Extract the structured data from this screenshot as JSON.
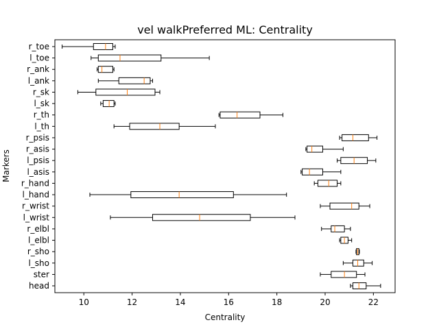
{
  "chart_data": {
    "type": "boxplot",
    "title": "vel walkPreferred ML: Centrality",
    "xlabel": "Centrality",
    "ylabel": "Markers",
    "xlim": [
      8.8,
      22.9
    ],
    "xticks": [
      10,
      12,
      14,
      16,
      18,
      20,
      22
    ],
    "grid": false,
    "orientation": "horizontal",
    "colors": {
      "box": "#000000",
      "median": "#ff7f0e"
    },
    "series": [
      {
        "category": "head",
        "whislo": 21.05,
        "q1": 21.15,
        "med": 21.4,
        "q3": 21.7,
        "whishi": 22.3
      },
      {
        "category": "ster",
        "whislo": 19.8,
        "q1": 20.25,
        "med": 20.8,
        "q3": 21.3,
        "whishi": 21.65
      },
      {
        "category": "l_sho",
        "whislo": 20.75,
        "q1": 21.15,
        "med": 21.35,
        "q3": 21.6,
        "whishi": 21.95
      },
      {
        "category": "r_sho",
        "whislo": 21.28,
        "q1": 21.3,
        "med": 21.35,
        "q3": 21.4,
        "whishi": 21.42
      },
      {
        "category": "l_elbl",
        "whislo": 20.6,
        "q1": 20.65,
        "med": 20.8,
        "q3": 20.95,
        "whishi": 21.1
      },
      {
        "category": "r_elbl",
        "whislo": 19.85,
        "q1": 20.25,
        "med": 20.4,
        "q3": 20.8,
        "whishi": 21.05
      },
      {
        "category": "l_wrist",
        "whislo": 11.1,
        "q1": 12.85,
        "med": 14.8,
        "q3": 16.9,
        "whishi": 18.75
      },
      {
        "category": "r_wrist",
        "whislo": 19.8,
        "q1": 20.2,
        "med": 21.1,
        "q3": 21.4,
        "whishi": 21.85
      },
      {
        "category": "l_hand",
        "whislo": 10.25,
        "q1": 11.95,
        "med": 13.95,
        "q3": 16.2,
        "whishi": 18.4
      },
      {
        "category": "r_hand",
        "whislo": 19.55,
        "q1": 19.7,
        "med": 20.15,
        "q3": 20.5,
        "whishi": 20.65
      },
      {
        "category": "l_asis",
        "whislo": 19.0,
        "q1": 19.05,
        "med": 19.35,
        "q3": 19.9,
        "whishi": 20.65
      },
      {
        "category": "l_psis",
        "whislo": 20.5,
        "q1": 20.65,
        "med": 21.2,
        "q3": 21.75,
        "whishi": 22.1
      },
      {
        "category": "r_asis",
        "whislo": 19.2,
        "q1": 19.25,
        "med": 19.45,
        "q3": 19.9,
        "whishi": 20.75
      },
      {
        "category": "r_psis",
        "whislo": 20.6,
        "q1": 20.7,
        "med": 21.15,
        "q3": 21.8,
        "whishi": 22.15
      },
      {
        "category": "l_th",
        "whislo": 11.25,
        "q1": 11.9,
        "med": 13.15,
        "q3": 13.95,
        "whishi": 15.45
      },
      {
        "category": "r_th",
        "whislo": 15.6,
        "q1": 15.65,
        "med": 16.35,
        "q3": 17.3,
        "whishi": 18.25
      },
      {
        "category": "l_sk",
        "whislo": 10.7,
        "q1": 10.8,
        "med": 11.05,
        "q3": 11.25,
        "whishi": 11.3
      },
      {
        "category": "r_sk",
        "whislo": 9.75,
        "q1": 10.5,
        "med": 11.8,
        "q3": 12.95,
        "whishi": 13.15
      },
      {
        "category": "l_ank",
        "whislo": 10.6,
        "q1": 11.45,
        "med": 12.5,
        "q3": 12.75,
        "whishi": 12.85
      },
      {
        "category": "r_ank",
        "whislo": 10.55,
        "q1": 10.6,
        "med": 10.75,
        "q3": 11.2,
        "whishi": 11.25
      },
      {
        "category": "l_toe",
        "whislo": 10.3,
        "q1": 10.6,
        "med": 11.5,
        "q3": 13.2,
        "whishi": 15.2
      },
      {
        "category": "r_toe",
        "whislo": 9.1,
        "q1": 10.4,
        "med": 10.9,
        "q3": 11.2,
        "whishi": 11.3
      }
    ]
  }
}
